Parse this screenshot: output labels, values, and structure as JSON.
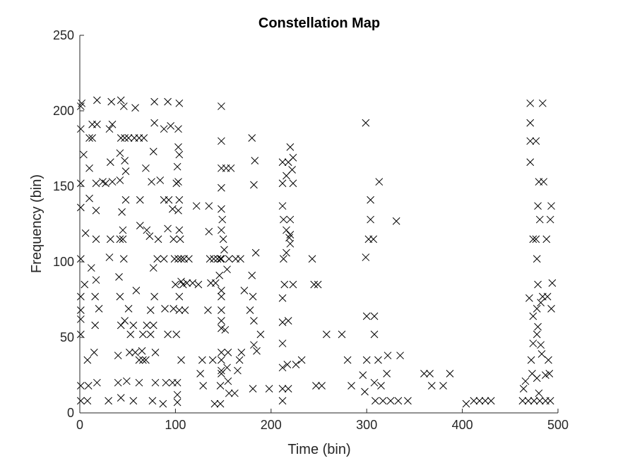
{
  "chart_data": {
    "type": "scatter",
    "title": "Constellation Map",
    "xlabel": "Time (bin)",
    "ylabel": "Frequency (bin)",
    "xlim": [
      0,
      500
    ],
    "ylim": [
      0,
      250
    ],
    "xticks": [
      0,
      100,
      200,
      300,
      400,
      500
    ],
    "yticks": [
      0,
      50,
      100,
      150,
      200,
      250
    ],
    "grid": false,
    "box": "left-bottom",
    "marker": "x",
    "marker_color": "#000000",
    "points": [
      [
        1,
        8
      ],
      [
        1,
        18
      ],
      [
        1,
        52
      ],
      [
        1,
        62
      ],
      [
        1,
        68
      ],
      [
        1,
        77
      ],
      [
        1,
        102
      ],
      [
        1,
        136
      ],
      [
        1,
        152
      ],
      [
        1,
        188
      ],
      [
        1,
        203
      ],
      [
        2,
        205
      ],
      [
        4,
        171
      ],
      [
        5,
        85
      ],
      [
        6,
        119
      ],
      [
        8,
        8
      ],
      [
        8,
        35
      ],
      [
        9,
        18
      ],
      [
        10,
        142
      ],
      [
        10,
        162
      ],
      [
        10,
        182
      ],
      [
        12,
        96
      ],
      [
        13,
        182
      ],
      [
        13,
        191
      ],
      [
        15,
        40
      ],
      [
        16,
        58
      ],
      [
        16,
        77
      ],
      [
        17,
        88
      ],
      [
        17,
        115
      ],
      [
        17,
        134
      ],
      [
        17,
        152
      ],
      [
        18,
        20
      ],
      [
        18,
        191
      ],
      [
        18,
        207
      ],
      [
        20,
        69
      ],
      [
        24,
        153
      ],
      [
        27,
        152
      ],
      [
        30,
        8
      ],
      [
        31,
        188
      ],
      [
        31,
        103
      ],
      [
        32,
        166
      ],
      [
        32,
        115
      ],
      [
        33,
        206
      ],
      [
        34,
        153
      ],
      [
        34,
        191
      ],
      [
        40,
        20
      ],
      [
        40,
        38
      ],
      [
        41,
        90
      ],
      [
        42,
        77
      ],
      [
        42,
        115
      ],
      [
        42,
        154
      ],
      [
        42,
        172
      ],
      [
        43,
        182
      ],
      [
        43,
        207
      ],
      [
        43,
        10
      ],
      [
        43,
        58
      ],
      [
        44,
        133
      ],
      [
        45,
        115
      ],
      [
        45,
        121
      ],
      [
        46,
        102
      ],
      [
        47,
        61
      ],
      [
        46,
        203
      ],
      [
        47,
        167
      ],
      [
        47,
        182
      ],
      [
        48,
        160
      ],
      [
        48,
        141
      ],
      [
        49,
        21
      ],
      [
        51,
        182
      ],
      [
        51,
        69
      ],
      [
        52,
        40
      ],
      [
        53,
        52
      ],
      [
        56,
        8
      ],
      [
        56,
        58
      ],
      [
        57,
        182
      ],
      [
        58,
        40
      ],
      [
        58,
        202
      ],
      [
        59,
        81
      ],
      [
        62,
        20
      ],
      [
        62,
        35
      ],
      [
        62,
        182
      ],
      [
        63,
        124
      ],
      [
        63,
        141
      ],
      [
        65,
        41
      ],
      [
        66,
        35
      ],
      [
        66,
        52
      ],
      [
        67,
        182
      ],
      [
        69,
        35
      ],
      [
        69,
        162
      ],
      [
        70,
        58
      ],
      [
        70,
        121
      ],
      [
        73,
        117
      ],
      [
        74,
        68
      ],
      [
        74,
        52
      ],
      [
        75,
        153
      ],
      [
        76,
        8
      ],
      [
        77,
        96
      ],
      [
        77,
        58
      ],
      [
        77,
        173
      ],
      [
        78,
        77
      ],
      [
        78,
        192
      ],
      [
        78,
        206
      ],
      [
        79,
        20
      ],
      [
        79,
        40
      ],
      [
        81,
        102
      ],
      [
        82,
        115
      ],
      [
        84,
        154
      ],
      [
        87,
        6
      ],
      [
        88,
        188
      ],
      [
        88,
        141
      ],
      [
        88,
        102
      ],
      [
        89,
        69
      ],
      [
        90,
        20
      ],
      [
        92,
        122
      ],
      [
        92,
        206
      ],
      [
        92,
        52
      ],
      [
        93,
        141
      ],
      [
        95,
        190
      ],
      [
        97,
        135
      ],
      [
        97,
        20
      ],
      [
        98,
        69
      ],
      [
        98,
        115
      ],
      [
        99,
        102
      ],
      [
        100,
        85
      ],
      [
        101,
        52
      ],
      [
        101,
        152
      ],
      [
        102,
        7
      ],
      [
        102,
        12
      ],
      [
        102,
        20
      ],
      [
        102,
        163
      ],
      [
        103,
        102
      ],
      [
        103,
        134
      ],
      [
        103,
        153
      ],
      [
        103,
        176
      ],
      [
        103,
        188
      ],
      [
        104,
        205
      ],
      [
        104,
        171
      ],
      [
        104,
        141
      ],
      [
        104,
        121
      ],
      [
        104,
        77
      ],
      [
        104,
        68
      ],
      [
        105,
        115
      ],
      [
        106,
        102
      ],
      [
        106,
        87
      ],
      [
        106,
        35
      ],
      [
        108,
        85
      ],
      [
        109,
        102
      ],
      [
        110,
        68
      ],
      [
        112,
        86
      ],
      [
        114,
        102
      ],
      [
        118,
        86
      ],
      [
        122,
        137
      ],
      [
        124,
        85
      ],
      [
        126,
        26
      ],
      [
        128,
        35
      ],
      [
        129,
        18
      ],
      [
        134,
        68
      ],
      [
        135,
        120
      ],
      [
        135,
        137
      ],
      [
        136,
        102
      ],
      [
        137,
        86
      ],
      [
        139,
        35
      ],
      [
        140,
        102
      ],
      [
        141,
        6
      ],
      [
        142,
        86
      ],
      [
        144,
        102
      ],
      [
        146,
        91
      ],
      [
        147,
        102
      ],
      [
        147,
        6
      ],
      [
        147,
        18
      ],
      [
        148,
        26
      ],
      [
        148,
        28
      ],
      [
        148,
        35
      ],
      [
        148,
        40
      ],
      [
        148,
        56
      ],
      [
        148,
        61
      ],
      [
        148,
        68
      ],
      [
        148,
        77
      ],
      [
        148,
        81
      ],
      [
        148,
        102
      ],
      [
        148,
        121
      ],
      [
        148,
        135
      ],
      [
        148,
        149
      ],
      [
        148,
        162
      ],
      [
        148,
        180
      ],
      [
        148,
        203
      ],
      [
        149,
        128
      ],
      [
        150,
        115
      ],
      [
        151,
        108
      ],
      [
        152,
        55
      ],
      [
        153,
        162
      ],
      [
        154,
        95
      ],
      [
        154,
        30
      ],
      [
        155,
        21
      ],
      [
        155,
        40
      ],
      [
        156,
        13
      ],
      [
        156,
        102
      ],
      [
        158,
        162
      ],
      [
        162,
        13
      ],
      [
        163,
        102
      ],
      [
        165,
        28
      ],
      [
        167,
        35
      ],
      [
        168,
        102
      ],
      [
        169,
        40
      ],
      [
        172,
        81
      ],
      [
        178,
        68
      ],
      [
        180,
        91
      ],
      [
        180,
        182
      ],
      [
        181,
        16
      ],
      [
        181,
        77
      ],
      [
        182,
        61
      ],
      [
        182,
        45
      ],
      [
        182,
        151
      ],
      [
        183,
        167
      ],
      [
        184,
        106
      ],
      [
        185,
        41
      ],
      [
        189,
        52
      ],
      [
        198,
        16
      ],
      [
        212,
        8
      ],
      [
        212,
        16
      ],
      [
        212,
        30
      ],
      [
        212,
        46
      ],
      [
        212,
        60
      ],
      [
        212,
        76
      ],
      [
        212,
        137
      ],
      [
        212,
        152
      ],
      [
        212,
        166
      ],
      [
        213,
        128
      ],
      [
        213,
        102
      ],
      [
        214,
        85
      ],
      [
        216,
        106
      ],
      [
        216,
        121
      ],
      [
        216,
        157
      ],
      [
        217,
        32
      ],
      [
        218,
        16
      ],
      [
        218,
        61
      ],
      [
        218,
        166
      ],
      [
        219,
        116
      ],
      [
        220,
        176
      ],
      [
        220,
        128
      ],
      [
        220,
        118
      ],
      [
        220,
        112
      ],
      [
        222,
        161
      ],
      [
        223,
        152
      ],
      [
        223,
        85
      ],
      [
        223,
        169
      ],
      [
        226,
        32
      ],
      [
        232,
        35
      ],
      [
        243,
        102
      ],
      [
        245,
        85
      ],
      [
        247,
        18
      ],
      [
        249,
        85
      ],
      [
        253,
        18
      ],
      [
        258,
        52
      ],
      [
        274,
        52
      ],
      [
        280,
        35
      ],
      [
        284,
        18
      ],
      [
        296,
        25
      ],
      [
        298,
        14
      ],
      [
        299,
        103
      ],
      [
        299,
        192
      ],
      [
        300,
        35
      ],
      [
        300,
        64
      ],
      [
        302,
        115
      ],
      [
        304,
        141
      ],
      [
        304,
        128
      ],
      [
        307,
        115
      ],
      [
        308,
        52
      ],
      [
        308,
        64
      ],
      [
        308,
        20
      ],
      [
        309,
        8
      ],
      [
        312,
        35
      ],
      [
        313,
        153
      ],
      [
        315,
        18
      ],
      [
        317,
        8
      ],
      [
        321,
        26
      ],
      [
        322,
        38
      ],
      [
        325,
        8
      ],
      [
        331,
        127
      ],
      [
        333,
        8
      ],
      [
        335,
        38
      ],
      [
        343,
        8
      ],
      [
        360,
        26
      ],
      [
        366,
        26
      ],
      [
        368,
        18
      ],
      [
        380,
        18
      ],
      [
        387,
        26
      ],
      [
        404,
        6
      ],
      [
        412,
        8
      ],
      [
        418,
        8
      ],
      [
        424,
        8
      ],
      [
        430,
        8
      ],
      [
        463,
        8
      ],
      [
        464,
        16
      ],
      [
        466,
        21
      ],
      [
        469,
        8
      ],
      [
        470,
        76
      ],
      [
        471,
        166
      ],
      [
        471,
        192
      ],
      [
        471,
        205
      ],
      [
        471,
        180
      ],
      [
        472,
        35
      ],
      [
        473,
        26
      ],
      [
        474,
        46
      ],
      [
        474,
        115
      ],
      [
        474,
        64
      ],
      [
        475,
        8
      ],
      [
        477,
        180
      ],
      [
        477,
        115
      ],
      [
        478,
        52
      ],
      [
        478,
        102
      ],
      [
        478,
        23
      ],
      [
        478,
        69
      ],
      [
        479,
        57
      ],
      [
        479,
        85
      ],
      [
        479,
        137
      ],
      [
        480,
        153
      ],
      [
        480,
        13
      ],
      [
        481,
        8
      ],
      [
        481,
        128
      ],
      [
        482,
        45
      ],
      [
        482,
        73
      ],
      [
        483,
        39
      ],
      [
        484,
        77
      ],
      [
        484,
        205
      ],
      [
        485,
        153
      ],
      [
        487,
        25
      ],
      [
        487,
        8
      ],
      [
        488,
        115
      ],
      [
        489,
        77
      ],
      [
        490,
        35
      ],
      [
        491,
        26
      ],
      [
        492,
        8
      ],
      [
        492,
        128
      ],
      [
        493,
        69
      ],
      [
        493,
        137
      ],
      [
        494,
        86
      ]
    ]
  }
}
